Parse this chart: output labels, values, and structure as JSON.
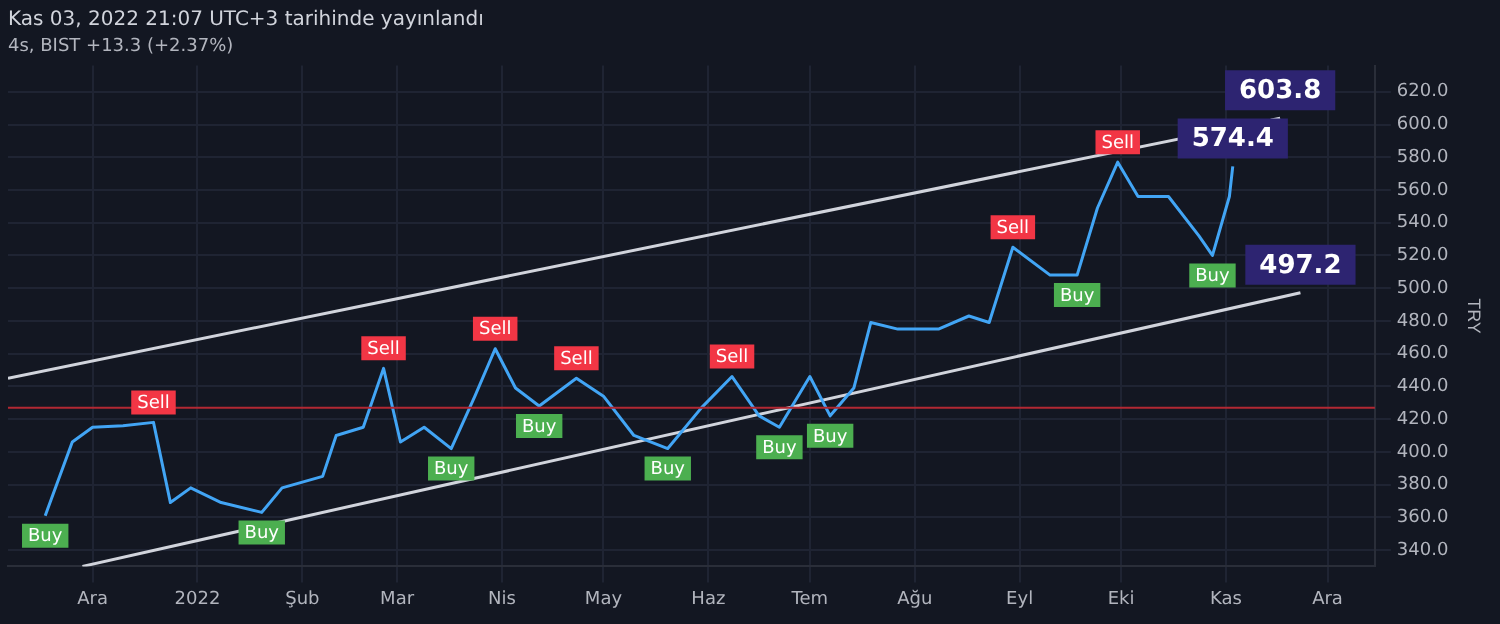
{
  "chart_data": {
    "type": "line",
    "title": "Kas 03, 2022 21:07 UTC+3 tarihinde yayınlandı",
    "subtitle": "4s, BIST +13.3 (+2.37%)",
    "ylabel": "TRY",
    "series": [
      {
        "color": "#42a5f5",
        "x": [
          "2021-11-17",
          "2021-11-25",
          "2021-12-01",
          "2021-12-10",
          "2021-12-19",
          "2021-12-24",
          "2021-12-30",
          "2022-01-08",
          "2022-01-20",
          "2022-01-26",
          "2022-02-07",
          "2022-02-11",
          "2022-02-19",
          "2022-02-25",
          "2022-03-02",
          "2022-03-09",
          "2022-03-17",
          "2022-03-24",
          "2022-03-30",
          "2022-04-05",
          "2022-04-12",
          "2022-04-23",
          "2022-05-01",
          "2022-05-10",
          "2022-05-20",
          "2022-05-30",
          "2022-06-08",
          "2022-06-16",
          "2022-06-22",
          "2022-07-01",
          "2022-07-07",
          "2022-07-14",
          "2022-07-19",
          "2022-07-27",
          "2022-08-08",
          "2022-08-17",
          "2022-08-23",
          "2022-08-30",
          "2022-09-10",
          "2022-09-18",
          "2022-09-24",
          "2022-09-30",
          "2022-10-06",
          "2022-10-15",
          "2022-10-24",
          "2022-10-28",
          "2022-11-02",
          "2022-11-03"
        ],
        "values": [
          361,
          406,
          415,
          416,
          418,
          369,
          378,
          369,
          363,
          378,
          385,
          410,
          415,
          451,
          406,
          415,
          402,
          434,
          463,
          439,
          428,
          445,
          434,
          410,
          402,
          427,
          446,
          422,
          415,
          446,
          422,
          439,
          479,
          475,
          475,
          483,
          479,
          525,
          508,
          508,
          549,
          577,
          556,
          556,
          532,
          520,
          556,
          574.4
        ]
      },
      {
        "color": "#d1d4dc",
        "x": [
          "2021-11-06",
          "2022-11-17"
        ],
        "values": [
          445,
          603.8
        ]
      },
      {
        "color": "#d1d4dc",
        "x": [
          "2021-11-28",
          "2022-11-23"
        ],
        "values": [
          330,
          497.2
        ]
      }
    ],
    "xlim": [
      "2021-11-06",
      "2022-12-15"
    ],
    "xticks": [
      {
        "value": "2021-12-01",
        "label": "Ara"
      },
      {
        "value": "2022-01-01",
        "label": "2022"
      },
      {
        "value": "2022-02-01",
        "label": "Şub"
      },
      {
        "value": "2022-03-01",
        "label": "Mar"
      },
      {
        "value": "2022-04-01",
        "label": "Nis"
      },
      {
        "value": "2022-05-01",
        "label": "May"
      },
      {
        "value": "2022-06-01",
        "label": "Haz"
      },
      {
        "value": "2022-07-01",
        "label": "Tem"
      },
      {
        "value": "2022-08-01",
        "label": "Ağu"
      },
      {
        "value": "2022-09-01",
        "label": "Eyl"
      },
      {
        "value": "2022-10-01",
        "label": "Eki"
      },
      {
        "value": "2022-11-01",
        "label": "Kas"
      },
      {
        "value": "2022-12-01",
        "label": "Ara"
      }
    ],
    "ylim": [
      330,
      636
    ],
    "yticks": [
      {
        "value": 340,
        "label": "340.0"
      },
      {
        "value": 360,
        "label": "360.0"
      },
      {
        "value": 380,
        "label": "380.0"
      },
      {
        "value": 400,
        "label": "400.0"
      },
      {
        "value": 420,
        "label": "420.0"
      },
      {
        "value": 440,
        "label": "440.0"
      },
      {
        "value": 460,
        "label": "460.0"
      },
      {
        "value": 480,
        "label": "480.0"
      },
      {
        "value": 500,
        "label": "500.0"
      },
      {
        "value": 520,
        "label": "520.0"
      },
      {
        "value": 540,
        "label": "540.0"
      },
      {
        "value": 560,
        "label": "560.0"
      },
      {
        "value": 580,
        "label": "580.0"
      },
      {
        "value": 600,
        "label": "600.0"
      },
      {
        "value": 620,
        "label": "620.0"
      }
    ],
    "ref_lines": [
      {
        "axis": "y",
        "value": 427,
        "color": "#b22833"
      }
    ],
    "annotations": [
      {
        "text": "Sell",
        "x": "2021-12-19",
        "y": 418
      },
      {
        "text": "Sell",
        "x": "2022-02-25",
        "y": 451
      },
      {
        "text": "Sell",
        "x": "2022-03-30",
        "y": 463
      },
      {
        "text": "Sell",
        "x": "2022-04-23",
        "y": 445
      },
      {
        "text": "Sell",
        "x": "2022-06-08",
        "y": 446
      },
      {
        "text": "Sell",
        "x": "2022-08-30",
        "y": 525
      },
      {
        "text": "Sell",
        "x": "2022-09-30",
        "y": 577
      },
      {
        "text": "Buy",
        "x": "2021-11-17",
        "y": 361
      },
      {
        "text": "Buy",
        "x": "2022-01-20",
        "y": 363
      },
      {
        "text": "Buy",
        "x": "2022-03-17",
        "y": 402
      },
      {
        "text": "Buy",
        "x": "2022-04-12",
        "y": 428
      },
      {
        "text": "Buy",
        "x": "2022-05-20",
        "y": 402
      },
      {
        "text": "Buy",
        "x": "2022-06-22",
        "y": 415
      },
      {
        "text": "Buy",
        "x": "2022-07-07",
        "y": 422
      },
      {
        "text": "Buy",
        "x": "2022-09-18",
        "y": 508
      },
      {
        "text": "Buy",
        "x": "2022-10-28",
        "y": 520
      },
      {
        "text": "603.8",
        "x": "2022-11-17",
        "y": 603.8
      },
      {
        "text": "497.2",
        "x": "2022-11-23",
        "y": 497.2
      },
      {
        "text": "574.4",
        "x": "2022-11-03",
        "y": 574.4
      }
    ],
    "grid": true,
    "legend": false,
    "marker": "none",
    "line_style": "solid"
  }
}
